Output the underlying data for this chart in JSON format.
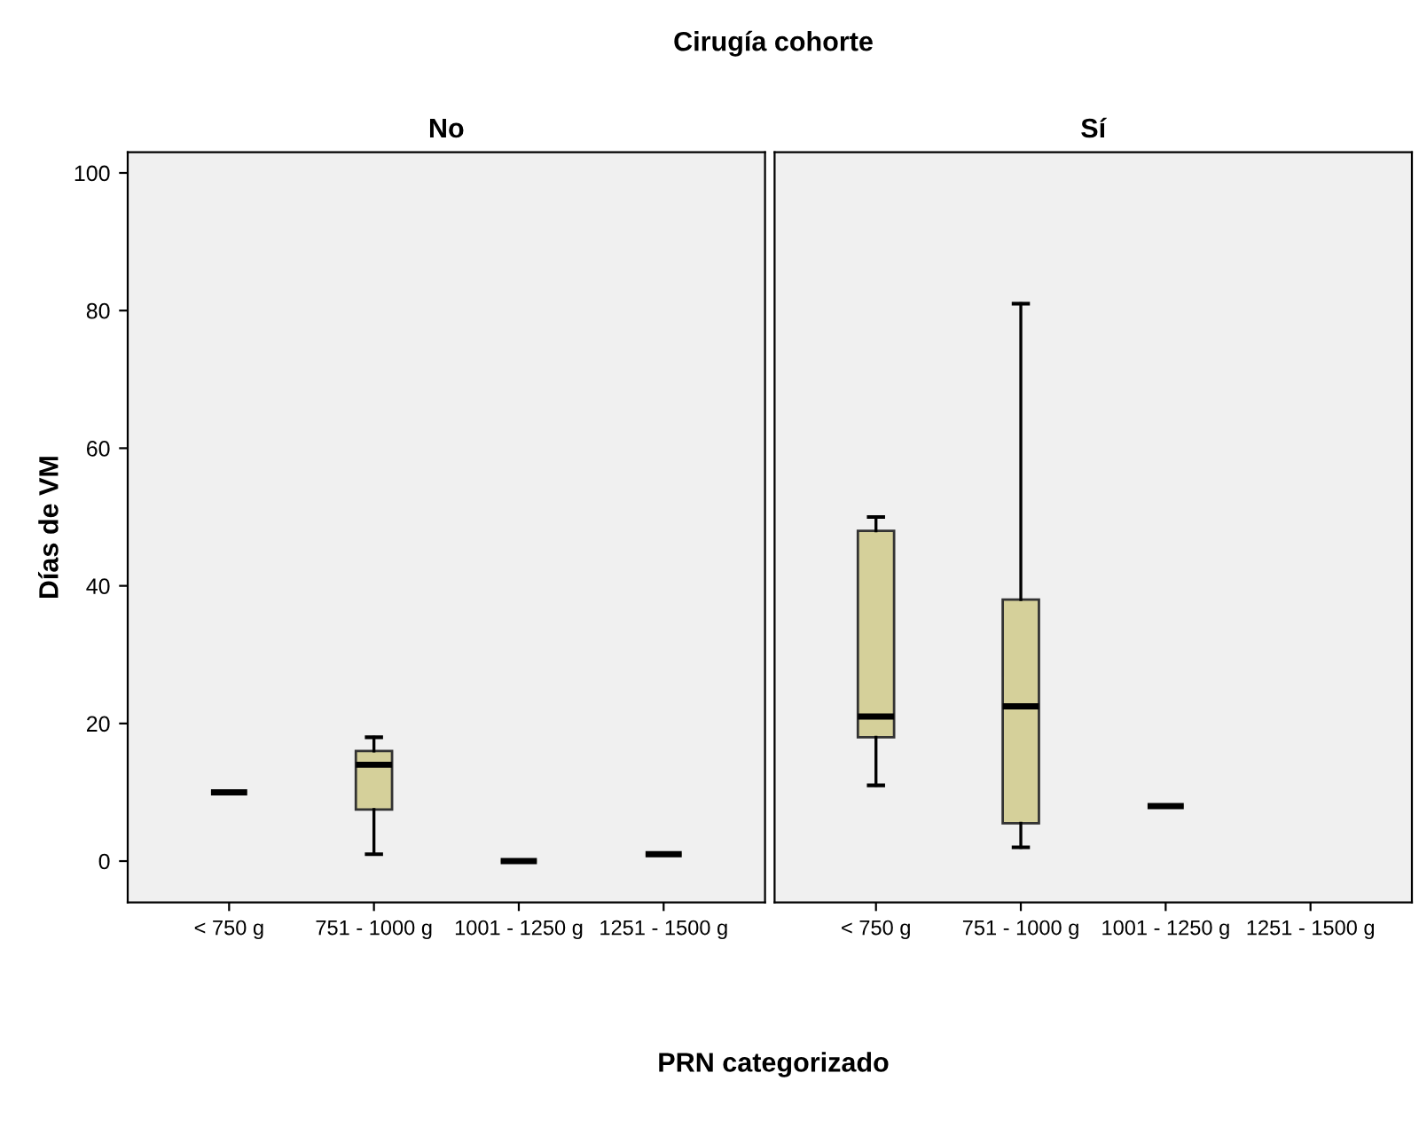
{
  "chart_data": [
    {
      "type": "box",
      "title": "No",
      "ylabel": "Días de VM",
      "xlabel": "PRN categorizado",
      "annotations": [
        "Cirugía cohorte"
      ],
      "categories": [
        "< 750 g",
        "751 - 1000 g",
        "1001 - 1250 g",
        "1251 - 1500 g"
      ],
      "color": "#d5d09a",
      "ylim": [
        -6,
        103
      ],
      "yticks": [
        0,
        20,
        40,
        60,
        80,
        100
      ],
      "grid": false,
      "boxes": [
        {
          "low": 10,
          "q1": 10,
          "median": 10,
          "q3": 10,
          "high": 10
        },
        {
          "low": 1,
          "q1": 7.5,
          "median": 14,
          "q3": 16,
          "high": 18
        },
        {
          "low": 0,
          "q1": 0,
          "median": 0,
          "q3": 0,
          "high": 0
        },
        {
          "low": 1,
          "q1": 1,
          "median": 1,
          "q3": 1,
          "high": 1
        }
      ]
    },
    {
      "type": "box",
      "title": "Sí",
      "categories": [
        "< 750 g",
        "751 - 1000 g",
        "1001 - 1250 g",
        "1251 - 1500 g"
      ],
      "color": "#d5d09a",
      "ylim": [
        -6,
        103
      ],
      "yticks": [
        0,
        20,
        40,
        60,
        80,
        100
      ],
      "grid": false,
      "tick_labels": "x",
      "boxes": [
        {
          "low": 11,
          "q1": 18,
          "median": 21,
          "q3": 48,
          "high": 50
        },
        {
          "low": 2,
          "q1": 5.5,
          "median": 22.5,
          "q3": 38,
          "high": 81
        },
        {
          "low": 8,
          "q1": 8,
          "median": 8,
          "q3": 8,
          "high": 8
        },
        null
      ]
    }
  ]
}
